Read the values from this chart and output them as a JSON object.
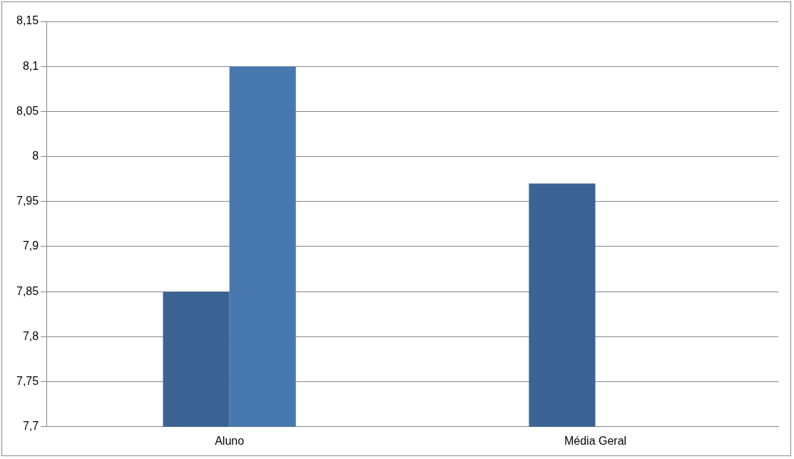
{
  "chart_data": {
    "type": "bar",
    "categories": [
      "Aluno",
      "Média Geral"
    ],
    "series": [
      {
        "color": "#3b6393",
        "values": [
          7.85,
          7.97
        ]
      },
      {
        "color": "#4878b0",
        "values": [
          8.1,
          null
        ]
      }
    ],
    "ylim": [
      7.7,
      8.15
    ],
    "yticks": [
      {
        "value": 7.7,
        "label": "7,7"
      },
      {
        "value": 7.75,
        "label": "7,75"
      },
      {
        "value": 7.8,
        "label": "7,8"
      },
      {
        "value": 7.85,
        "label": "7,85"
      },
      {
        "value": 7.9,
        "label": "7,9"
      },
      {
        "value": 7.95,
        "label": "7,95"
      },
      {
        "value": 8,
        "label": "8"
      },
      {
        "value": 8.05,
        "label": "8,05"
      },
      {
        "value": 8.1,
        "label": "8,1"
      },
      {
        "value": 8.15,
        "label": "8,15"
      }
    ],
    "grid": "y",
    "legend": false
  }
}
